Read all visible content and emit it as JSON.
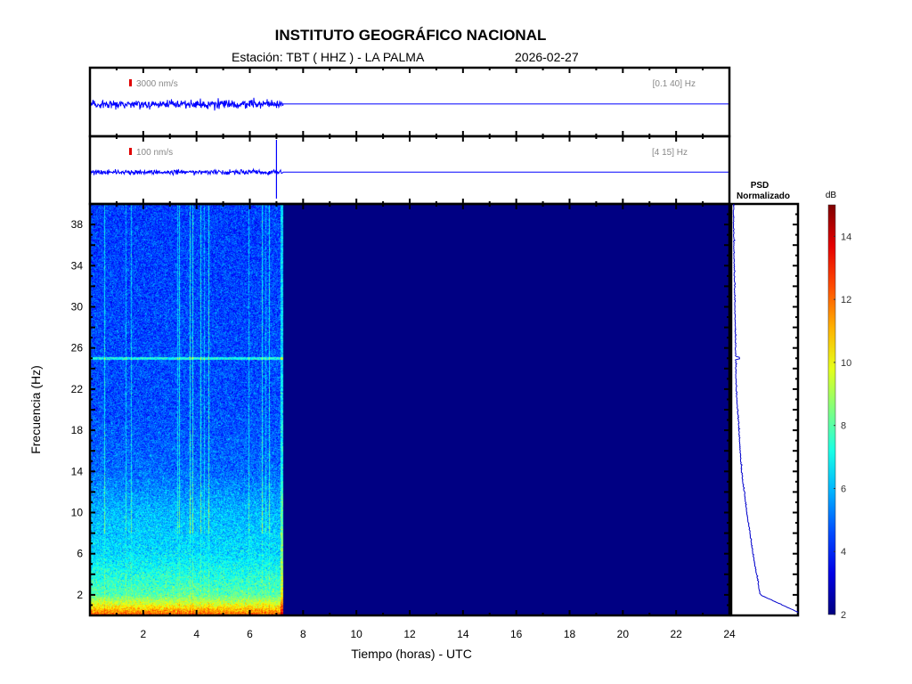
{
  "header": {
    "title": "INSTITUTO GEOGRÁFICO NACIONAL",
    "station": "Estación:  TBT ( HHZ ) - LA PALMA",
    "date": "2026-02-27"
  },
  "traces": [
    {
      "scale_label": "3000 nm/s",
      "band_label": "[0.1 40] Hz",
      "data_end_hour": 7.25
    },
    {
      "scale_label": "100 nm/s",
      "band_label": "[4 15] Hz",
      "data_end_hour": 7.25,
      "spike_hour": 7.0
    }
  ],
  "psd": {
    "title_line1": "PSD",
    "title_line2": "Normalizado"
  },
  "colorbar": {
    "label": "dB",
    "range": [
      2,
      15
    ],
    "ticks": [
      "2",
      "4",
      "6",
      "8",
      "10",
      "12",
      "14"
    ]
  },
  "chart_data": {
    "type": "heatmap",
    "title": "INSTITUTO GEOGRÁFICO NACIONAL",
    "xlabel": "Tiempo (horas) - UTC",
    "ylabel": "Frecuencia  (Hz)",
    "xlim": [
      0,
      24
    ],
    "ylim": [
      0,
      40
    ],
    "xticks": [
      "2",
      "4",
      "6",
      "8",
      "10",
      "12",
      "14",
      "16",
      "18",
      "20",
      "22",
      "24"
    ],
    "yticks": [
      "2",
      "6",
      "10",
      "14",
      "18",
      "22",
      "26",
      "30",
      "34",
      "38"
    ],
    "data_end_hour": 7.25,
    "mean_db_profile": {
      "freq_hz": [
        0,
        1,
        2,
        6,
        10,
        14,
        20,
        30,
        40
      ],
      "db": [
        12.5,
        10,
        8,
        6.5,
        6,
        5,
        4.6,
        4.5,
        4.4
      ]
    },
    "line_25hz_present": true,
    "psd_normalized": {
      "freq_hz": [
        0.3,
        2,
        6,
        10,
        14,
        18,
        22,
        25,
        26,
        30,
        34,
        38,
        40
      ],
      "value": [
        1.0,
        0.43,
        0.32,
        0.23,
        0.15,
        0.11,
        0.07,
        0.12,
        0.06,
        0.05,
        0.04,
        0.03,
        0.03
      ]
    }
  }
}
